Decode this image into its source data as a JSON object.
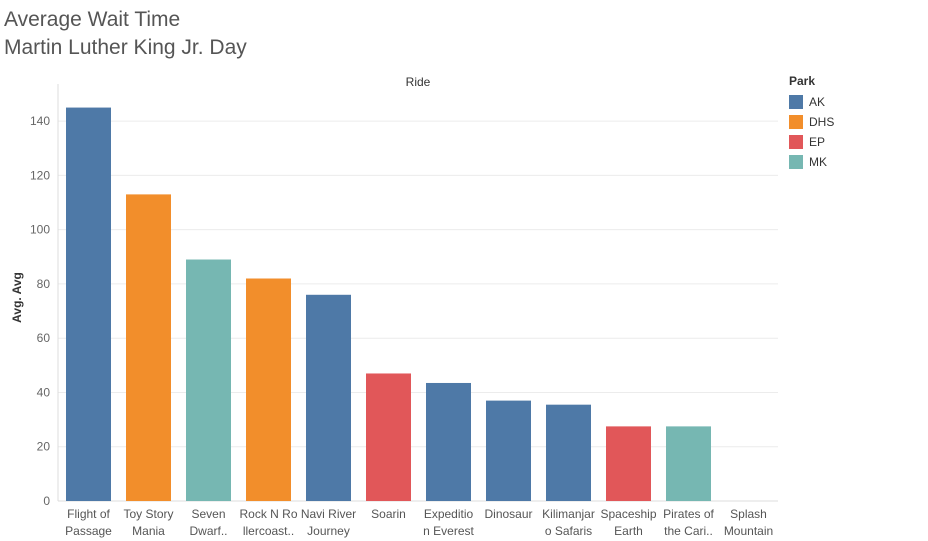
{
  "chart_data": {
    "type": "bar",
    "title": "Average Wait Time",
    "subtitle": "Martin Luther King Jr. Day",
    "header_label": "Ride",
    "ylabel": "Avg. Avg",
    "ylim": [
      0,
      150
    ],
    "yticks": [
      0,
      20,
      40,
      60,
      80,
      100,
      120,
      140
    ],
    "grid": true,
    "legend_position": "top-right",
    "legend_title": "Park",
    "legend": [
      {
        "name": "AK",
        "color": "#4e79a7"
      },
      {
        "name": "DHS",
        "color": "#f28e2b"
      },
      {
        "name": "EP",
        "color": "#e15759"
      },
      {
        "name": "MK",
        "color": "#76b7b2"
      }
    ],
    "categories": [
      [
        "Flight of",
        "Passage"
      ],
      [
        "Toy Story",
        "Mania"
      ],
      [
        "Seven",
        "Dwarf.."
      ],
      [
        "Rock N Ro",
        "llercoast.."
      ],
      [
        "Navi River",
        "Journey"
      ],
      [
        "Soarin"
      ],
      [
        "Expeditio",
        "n Everest"
      ],
      [
        "Dinosaur"
      ],
      [
        "Kilimanjar",
        "o Safaris"
      ],
      [
        "Spaceship",
        "Earth"
      ],
      [
        "Pirates of",
        "the Cari.."
      ],
      [
        "Splash",
        "Mountain"
      ]
    ],
    "values": [
      145,
      113,
      89,
      82,
      76,
      47,
      43.5,
      37,
      35.5,
      27.5,
      27.5,
      0
    ],
    "parks": [
      "AK",
      "DHS",
      "MK",
      "DHS",
      "AK",
      "EP",
      "AK",
      "AK",
      "AK",
      "EP",
      "MK",
      "MK"
    ]
  }
}
